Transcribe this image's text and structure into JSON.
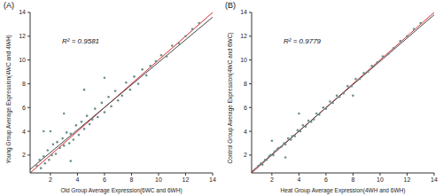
{
  "chart_data": [
    {
      "type": "scatter",
      "title": "(A)",
      "annotation": "R² = 0.9581",
      "x_label": "Old Group Average Expression(6WC and 6WH)",
      "y_label": "Young Group Average Expression(4WC and 4WH)",
      "xlim": [
        0.5,
        14
      ],
      "ylim": [
        0.5,
        14
      ],
      "xticks": [
        2,
        4,
        6,
        8,
        10,
        12,
        14
      ],
      "yticks": [
        2,
        4,
        6,
        8,
        10,
        12,
        14
      ],
      "series": [
        {
          "type": "scatter",
          "color": "#6b8f8c",
          "x": [
            1.0,
            1.2,
            1.3,
            1.5,
            1.6,
            1.8,
            1.9,
            2.1,
            2.2,
            2.4,
            2.5,
            2.7,
            2.9,
            3.0,
            3.2,
            3.4,
            3.5,
            3.7,
            3.9,
            4.1,
            4.3,
            4.5,
            4.7,
            4.9,
            5.1,
            5.3,
            5.5,
            5.8,
            6.0,
            6.3,
            6.5,
            6.8,
            7.0,
            7.3,
            7.6,
            7.9,
            8.2,
            8.5,
            8.8,
            9.1,
            9.4,
            9.8,
            10.2,
            10.6,
            11.0,
            11.5,
            12.0,
            12.5,
            2.0,
            3.0,
            4.5,
            6.0,
            3.5,
            1.5,
            13.0
          ],
          "values": [
            1.1,
            1.6,
            0.9,
            1.9,
            1.3,
            2.4,
            1.6,
            2.0,
            2.9,
            2.1,
            3.1,
            2.6,
            3.4,
            2.8,
            3.9,
            3.0,
            3.8,
            3.3,
            4.5,
            3.7,
            4.8,
            4.2,
            5.3,
            4.6,
            5.0,
            5.9,
            5.2,
            6.4,
            5.6,
            6.9,
            6.1,
            7.4,
            6.6,
            7.0,
            8.1,
            7.5,
            8.6,
            8.0,
            9.2,
            8.7,
            9.5,
            9.9,
            10.4,
            10.3,
            11.2,
            11.4,
            12.0,
            12.6,
            4.0,
            5.5,
            7.5,
            8.5,
            1.5,
            4.0,
            13.1
          ]
        },
        {
          "type": "line",
          "color": "#d62728",
          "x": [
            0.5,
            14
          ],
          "values": [
            0.5,
            14
          ]
        },
        {
          "type": "line",
          "color": "#444444",
          "x": [
            0.5,
            14
          ],
          "values": [
            0.8,
            13.6
          ]
        }
      ]
    },
    {
      "type": "scatter",
      "title": "(B)",
      "annotation": "R² = 0.9779",
      "x_label": "Heat Group Average Expression(4WH and 6WH)",
      "y_label": "Control Group Average Expression(4WC and 6WC)",
      "xlim": [
        0.5,
        14
      ],
      "ylim": [
        0.5,
        14
      ],
      "xticks": [
        2,
        4,
        6,
        8,
        10,
        12,
        14
      ],
      "yticks": [
        2,
        4,
        6,
        8,
        10,
        12,
        14
      ],
      "series": [
        {
          "type": "scatter",
          "color": "#6b8f8c",
          "x": [
            1.0,
            1.2,
            1.3,
            1.5,
            1.6,
            1.8,
            1.9,
            2.1,
            2.2,
            2.4,
            2.5,
            2.7,
            2.9,
            3.0,
            3.2,
            3.4,
            3.5,
            3.7,
            3.9,
            4.1,
            4.3,
            4.5,
            4.7,
            4.9,
            5.1,
            5.3,
            5.5,
            5.8,
            6.0,
            6.3,
            6.5,
            6.8,
            7.0,
            7.3,
            7.6,
            7.9,
            8.2,
            8.5,
            8.8,
            9.1,
            9.4,
            9.8,
            10.2,
            10.6,
            11.0,
            11.5,
            12.0,
            12.5,
            2.0,
            4.0,
            8.0,
            3.0,
            13.0
          ],
          "values": [
            1.1,
            1.3,
            1.2,
            1.6,
            1.6,
            1.9,
            2.0,
            2.0,
            2.3,
            2.5,
            2.6,
            2.7,
            3.0,
            2.9,
            3.4,
            3.3,
            3.6,
            3.6,
            4.1,
            4.0,
            4.5,
            4.4,
            4.9,
            4.8,
            5.0,
            5.5,
            5.4,
            6.0,
            5.9,
            6.5,
            6.4,
            7.0,
            6.9,
            7.2,
            7.8,
            7.8,
            8.4,
            8.4,
            8.9,
            9.0,
            9.5,
            9.8,
            10.3,
            10.5,
            11.0,
            11.6,
            12.0,
            12.6,
            3.2,
            5.5,
            7.0,
            1.8,
            13.1
          ]
        },
        {
          "type": "line",
          "color": "#d62728",
          "x": [
            0.5,
            14
          ],
          "values": [
            0.5,
            14
          ]
        },
        {
          "type": "line",
          "color": "#444444",
          "x": [
            0.5,
            14
          ],
          "values": [
            0.6,
            13.8
          ]
        }
      ]
    }
  ]
}
